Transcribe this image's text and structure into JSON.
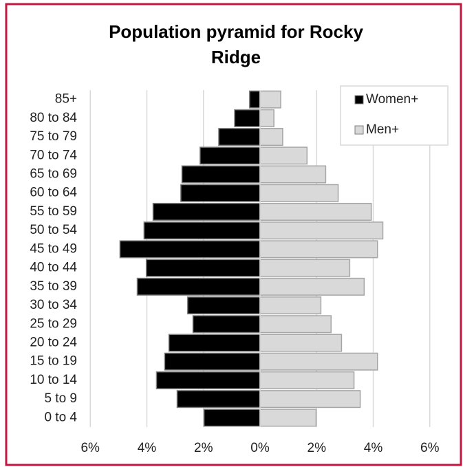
{
  "chart_data": {
    "type": "pyramid",
    "title": "Population pyramid for Rocky Ridge",
    "categories": [
      "85+",
      "80 to 84",
      "75 to 79",
      "70 to 74",
      "65 to 69",
      "60 to 64",
      "55 to 59",
      "50 to 54",
      "45 to 49",
      "40 to 44",
      "35 to 39",
      "30 to 34",
      "25 to 29",
      "20 to 24",
      "15 to 19",
      "10 to 14",
      "5 to 9",
      "0 to 4"
    ],
    "series": [
      {
        "name": "Women+",
        "color": "#000000",
        "values": [
          -0.37,
          -0.9,
          -1.46,
          -2.12,
          -2.76,
          -2.8,
          -3.78,
          -4.1,
          -4.95,
          -4.02,
          -4.34,
          -2.56,
          -2.37,
          -3.22,
          -3.37,
          -3.66,
          -2.93,
          -1.98
        ]
      },
      {
        "name": "Men+",
        "color": "#d9d9d9",
        "values": [
          0.73,
          0.49,
          0.8,
          1.66,
          2.32,
          2.76,
          3.93,
          4.34,
          4.15,
          3.17,
          3.68,
          2.15,
          2.51,
          2.88,
          4.15,
          3.32,
          3.54,
          1.98
        ]
      }
    ],
    "xlim": [
      -6.2,
      6.2
    ],
    "xticks": [
      {
        "value": -6,
        "label": "6%"
      },
      {
        "value": -4,
        "label": "4%"
      },
      {
        "value": -2,
        "label": "2%"
      },
      {
        "value": 0,
        "label": "0%"
      },
      {
        "value": 2,
        "label": "2%"
      },
      {
        "value": 4,
        "label": "4%"
      },
      {
        "value": 6,
        "label": "6%"
      }
    ],
    "grid": true,
    "legend": "top-right"
  }
}
